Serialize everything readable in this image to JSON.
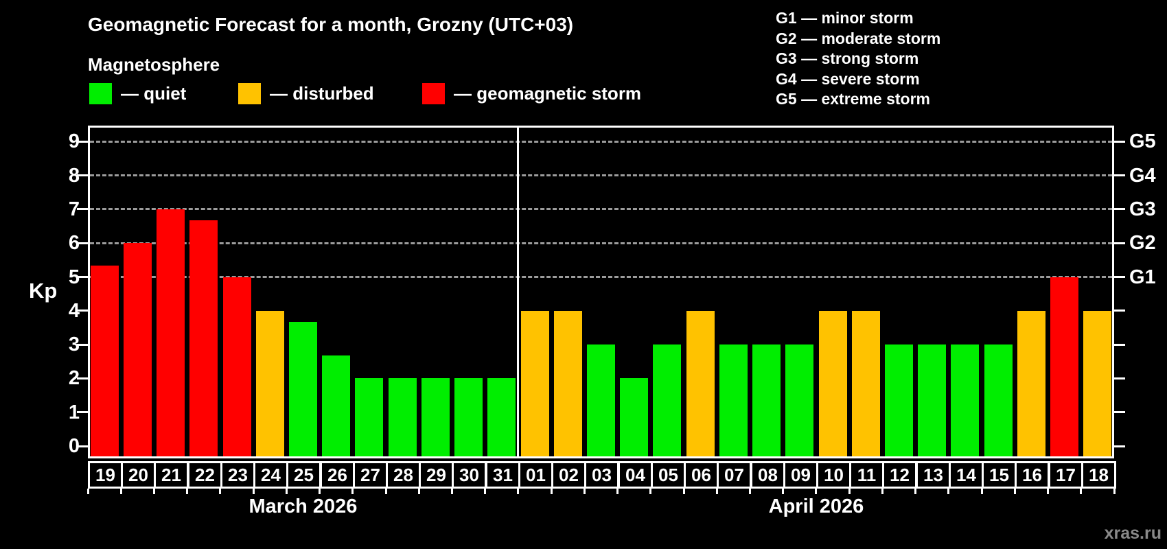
{
  "title": "Geomagnetic Forecast for a month, Grozny (UTC+03)",
  "subtitle": "Magnetosphere",
  "colors": {
    "quiet": "#00EE00",
    "disturbed": "#FFC200",
    "storm": "#FF0000",
    "grid": "#9C9C9C",
    "axis": "#FFFFFF",
    "background": "#000000",
    "watermark": "#8A8A8A"
  },
  "legend": {
    "items": [
      {
        "status": "quiet",
        "label": "— quiet"
      },
      {
        "status": "disturbed",
        "label": "— disturbed"
      },
      {
        "status": "storm",
        "label": "— geomagnetic storm"
      }
    ]
  },
  "storm_legend": [
    "G1 — minor storm",
    "G2 — moderate storm",
    "G3 — strong storm",
    "G4 — severe storm",
    "G5 — extreme storm"
  ],
  "watermark": "xras.ru",
  "chart_data": {
    "type": "bar",
    "title": "Geomagnetic Forecast for a month, Grozny (UTC+03)",
    "ylabel": "Kp",
    "ylim": [
      -0.4,
      9.5
    ],
    "yticks": [
      0,
      1,
      2,
      3,
      4,
      5,
      6,
      7,
      8,
      9
    ],
    "gridlines": [
      5,
      6,
      7,
      8,
      9
    ],
    "grid_style": "dashed horizontal lines at Kp 5-9 only",
    "legend_position": "top-left and top-right",
    "right_axis_labels": [
      {
        "kp": 5,
        "label": "G1"
      },
      {
        "kp": 6,
        "label": "G2"
      },
      {
        "kp": 7,
        "label": "G3"
      },
      {
        "kp": 8,
        "label": "G4"
      },
      {
        "kp": 9,
        "label": "G5"
      }
    ],
    "groups": [
      {
        "label": "March 2026",
        "days": [
          {
            "day": "19",
            "kp": 5.33,
            "status": "storm"
          },
          {
            "day": "20",
            "kp": 6,
            "status": "storm"
          },
          {
            "day": "21",
            "kp": 7,
            "status": "storm"
          },
          {
            "day": "22",
            "kp": 6.67,
            "status": "storm"
          },
          {
            "day": "23",
            "kp": 5,
            "status": "storm"
          },
          {
            "day": "24",
            "kp": 4,
            "status": "disturbed"
          },
          {
            "day": "25",
            "kp": 3.67,
            "status": "quiet"
          },
          {
            "day": "26",
            "kp": 2.67,
            "status": "quiet"
          },
          {
            "day": "27",
            "kp": 2,
            "status": "quiet"
          },
          {
            "day": "28",
            "kp": 2,
            "status": "quiet"
          },
          {
            "day": "29",
            "kp": 2,
            "status": "quiet"
          },
          {
            "day": "30",
            "kp": 2,
            "status": "quiet"
          },
          {
            "day": "31",
            "kp": 2,
            "status": "quiet"
          }
        ]
      },
      {
        "label": "April 2026",
        "days": [
          {
            "day": "01",
            "kp": 4,
            "status": "disturbed"
          },
          {
            "day": "02",
            "kp": 4,
            "status": "disturbed"
          },
          {
            "day": "03",
            "kp": 3,
            "status": "quiet"
          },
          {
            "day": "04",
            "kp": 2,
            "status": "quiet"
          },
          {
            "day": "05",
            "kp": 3,
            "status": "quiet"
          },
          {
            "day": "06",
            "kp": 4,
            "status": "disturbed"
          },
          {
            "day": "07",
            "kp": 3,
            "status": "quiet"
          },
          {
            "day": "08",
            "kp": 3,
            "status": "quiet"
          },
          {
            "day": "09",
            "kp": 3,
            "status": "quiet"
          },
          {
            "day": "10",
            "kp": 4,
            "status": "disturbed"
          },
          {
            "day": "11",
            "kp": 4,
            "status": "disturbed"
          },
          {
            "day": "12",
            "kp": 3,
            "status": "quiet"
          },
          {
            "day": "13",
            "kp": 3,
            "status": "quiet"
          },
          {
            "day": "14",
            "kp": 3,
            "status": "quiet"
          },
          {
            "day": "15",
            "kp": 3,
            "status": "quiet"
          },
          {
            "day": "16",
            "kp": 4,
            "status": "disturbed"
          },
          {
            "day": "17",
            "kp": 5,
            "status": "storm"
          },
          {
            "day": "18",
            "kp": 4,
            "status": "disturbed"
          }
        ]
      }
    ]
  }
}
